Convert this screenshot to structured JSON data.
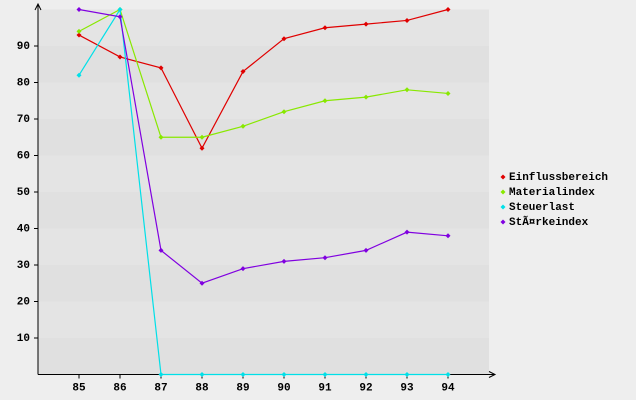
{
  "chart_data": {
    "type": "line",
    "categories": [
      "85",
      "86",
      "87",
      "88",
      "89",
      "90",
      "91",
      "92",
      "93",
      "94"
    ],
    "series": [
      {
        "name": "Einflussbereich",
        "color": "#e00000",
        "values": [
          93,
          87,
          84,
          62,
          83,
          92,
          95,
          96,
          97,
          100
        ]
      },
      {
        "name": "Materialindex",
        "color": "#88e800",
        "values": [
          94,
          100,
          65,
          65,
          68,
          72,
          75,
          76,
          78,
          77
        ]
      },
      {
        "name": "Steuerlast",
        "color": "#00e0e8",
        "values": [
          82,
          100,
          0,
          0,
          0,
          0,
          0,
          0,
          0,
          0
        ]
      },
      {
        "name": "StÃ¤rkeindex",
        "color": "#8000e0",
        "values": [
          100,
          98,
          34,
          25,
          29,
          31,
          32,
          34,
          39,
          38
        ]
      }
    ],
    "ylim": [
      0,
      100
    ],
    "yticks": [
      10,
      20,
      30,
      40,
      50,
      60,
      70,
      80,
      90
    ],
    "grid": true,
    "legend": "right"
  }
}
